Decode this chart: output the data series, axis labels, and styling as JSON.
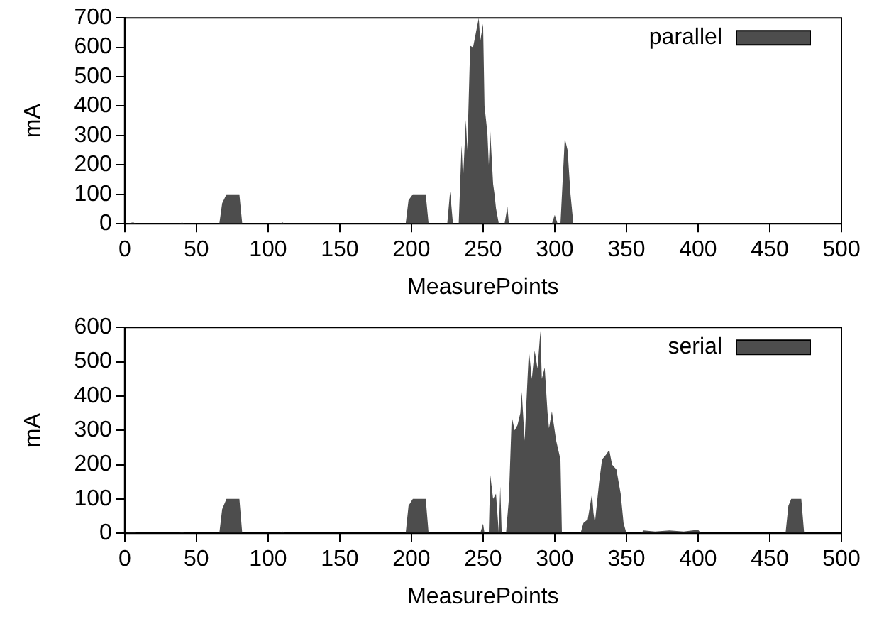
{
  "chart_data": [
    {
      "type": "area",
      "xlabel": "MeasurePoints",
      "ylabel": "mA",
      "xlim": [
        0,
        500
      ],
      "xticks": [
        0,
        50,
        100,
        150,
        200,
        250,
        300,
        350,
        400,
        450,
        500
      ],
      "ylim": [
        0,
        700
      ],
      "yticks": [
        0,
        100,
        200,
        300,
        400,
        500,
        600,
        700
      ],
      "grid": false,
      "legend": "top right",
      "series": [
        {
          "name": "parallel",
          "color": "#4d4d4d",
          "x": [
            0,
            6,
            8,
            38,
            40,
            42,
            66,
            68,
            71,
            80,
            82,
            108,
            110,
            112,
            196,
            198,
            201,
            210,
            212,
            225,
            227,
            229,
            233,
            235,
            236,
            238,
            239,
            241,
            243,
            247,
            248,
            250,
            251,
            253,
            254,
            255,
            257,
            258,
            259,
            261,
            265,
            267,
            268,
            298,
            300,
            302,
            304,
            307,
            309,
            311,
            313,
            500
          ],
          "values": [
            0,
            5,
            0,
            0,
            4,
            0,
            0,
            70,
            100,
            100,
            0,
            0,
            5,
            0,
            0,
            80,
            100,
            100,
            0,
            0,
            110,
            0,
            0,
            267,
            150,
            353,
            250,
            605,
            600,
            700,
            620,
            680,
            400,
            310,
            200,
            315,
            135,
            100,
            53,
            0,
            0,
            58,
            0,
            0,
            30,
            0,
            0,
            290,
            250,
            100,
            0,
            0
          ]
        }
      ]
    },
    {
      "type": "area",
      "xlabel": "MeasurePoints",
      "ylabel": "mA",
      "xlim": [
        0,
        500
      ],
      "xticks": [
        0,
        50,
        100,
        150,
        200,
        250,
        300,
        350,
        400,
        450,
        500
      ],
      "ylim": [
        0,
        600
      ],
      "yticks": [
        0,
        100,
        200,
        300,
        400,
        500,
        600
      ],
      "grid": false,
      "legend": "top right",
      "series": [
        {
          "name": "serial",
          "color": "#4d4d4d",
          "x": [
            0,
            6,
            8,
            38,
            40,
            42,
            66,
            68,
            71,
            80,
            82,
            108,
            110,
            112,
            196,
            198,
            201,
            210,
            212,
            248,
            250,
            251,
            254,
            255,
            257,
            259,
            261,
            262,
            263,
            266,
            268,
            270,
            272,
            274,
            276,
            277,
            279,
            281,
            282,
            284,
            286,
            288,
            290,
            291,
            293,
            295,
            296,
            298,
            301,
            304,
            305,
            318,
            320,
            323,
            326,
            327,
            328,
            331,
            333,
            336,
            338,
            340,
            343,
            346,
            348,
            350,
            360,
            362,
            370,
            380,
            390,
            400,
            402,
            410,
            461,
            463,
            465,
            472,
            474,
            500
          ],
          "values": [
            0,
            5,
            0,
            0,
            4,
            0,
            0,
            70,
            100,
            100,
            0,
            0,
            5,
            0,
            0,
            80,
            100,
            100,
            0,
            0,
            28,
            0,
            0,
            170,
            100,
            115,
            0,
            137,
            0,
            0,
            100,
            340,
            300,
            315,
            350,
            412,
            270,
            450,
            532,
            450,
            532,
            480,
            590,
            450,
            483,
            350,
            306,
            355,
            270,
            215,
            0,
            0,
            30,
            40,
            115,
            60,
            30,
            150,
            215,
            230,
            243,
            200,
            186,
            115,
            30,
            0,
            0,
            8,
            5,
            8,
            5,
            10,
            0,
            0,
            0,
            80,
            100,
            100,
            0,
            0
          ]
        }
      ]
    }
  ]
}
